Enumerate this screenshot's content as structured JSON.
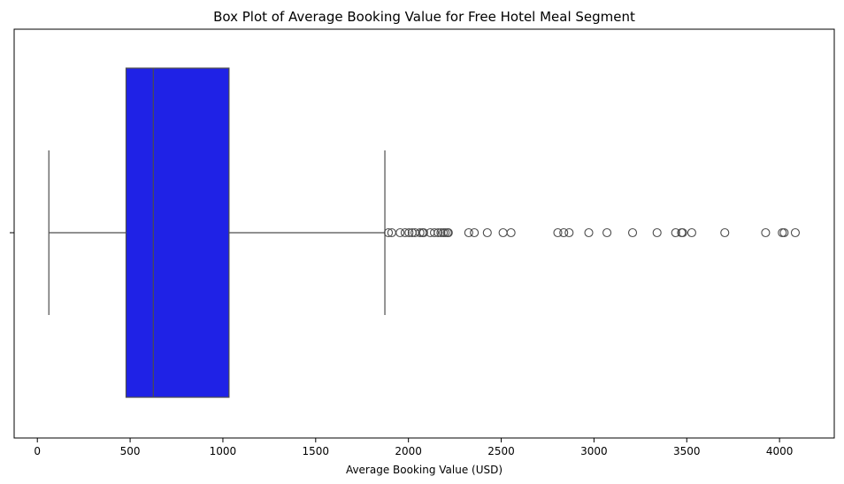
{
  "chart_data": {
    "type": "box",
    "orientation": "horizontal",
    "title": "Box Plot of Average Booking Value for Free Hotel Meal Segment",
    "xlabel": "Average Booking Value (USD)",
    "ylabel": "",
    "xlim": [
      -125,
      4295
    ],
    "xticks": [
      0,
      500,
      1000,
      1500,
      2000,
      2500,
      3000,
      3500,
      4000
    ],
    "box_color": "#1f22e6",
    "line_color": "#4d4d4d",
    "grid": false,
    "box": {
      "whisker_low": 62,
      "q1": 478,
      "median": 625,
      "q3": 1033,
      "whisker_high": 1873
    },
    "outliers": [
      1892,
      1910,
      1955,
      1982,
      2003,
      2020,
      2035,
      2062,
      2075,
      2082,
      2118,
      2140,
      2160,
      2175,
      2188,
      2198,
      2210,
      2215,
      2325,
      2355,
      2425,
      2510,
      2553,
      2805,
      2837,
      2866,
      2972,
      3070,
      3208,
      3340,
      3440,
      3472,
      3478,
      3527,
      3705,
      3925,
      4015,
      4025,
      4085
    ]
  }
}
